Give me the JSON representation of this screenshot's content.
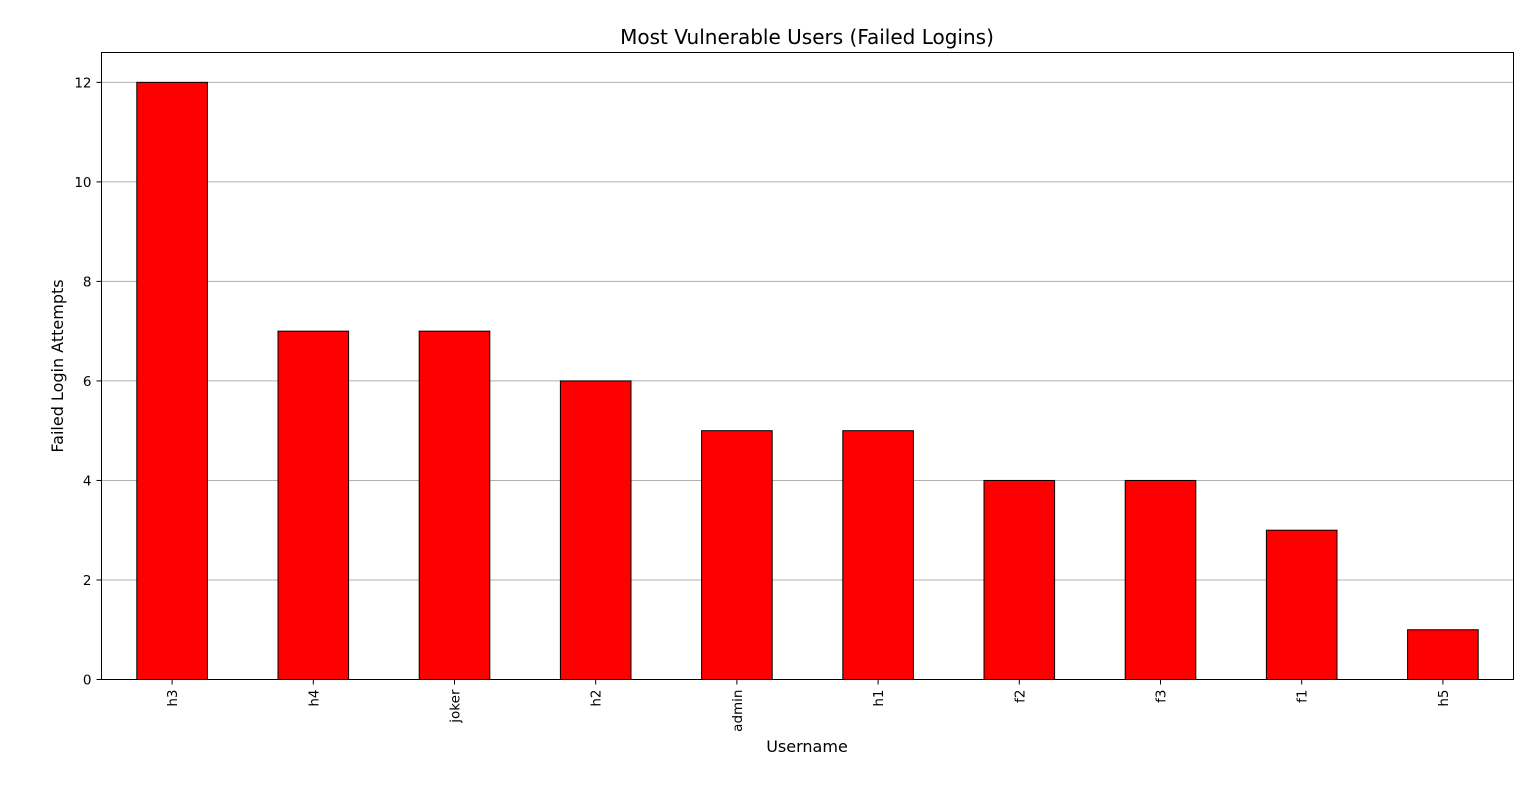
{
  "chart_data": {
    "type": "bar",
    "title": "Most Vulnerable Users (Failed Logins)",
    "xlabel": "Username",
    "ylabel": "Failed Login Attempts",
    "categories": [
      "h3",
      "h4",
      "joker",
      "h2",
      "admin",
      "h1",
      "f2",
      "f3",
      "f1",
      "h5"
    ],
    "values": [
      12,
      7,
      7,
      6,
      5,
      5,
      4,
      4,
      3,
      1
    ],
    "ylim": [
      0,
      12.6
    ],
    "yticks": [
      0,
      2,
      4,
      6,
      8,
      10,
      12
    ],
    "grid": "horizontal",
    "colors": {
      "bar_fill": "#ff0000",
      "bar_edge": "#000000",
      "grid": "#b0b0b0"
    }
  }
}
